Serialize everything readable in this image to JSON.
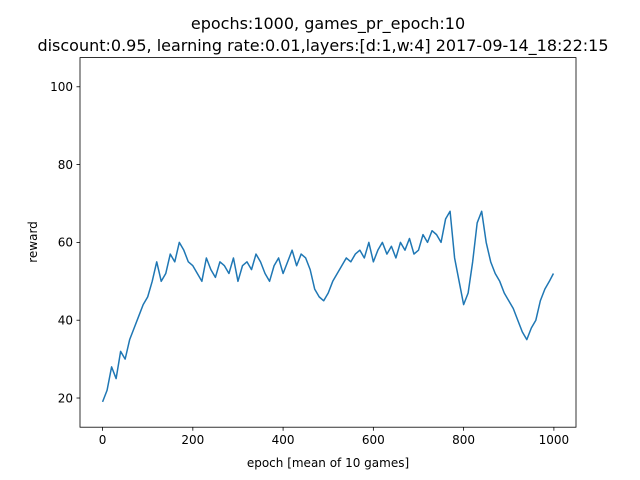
{
  "chart_data": {
    "type": "line",
    "title": "epochs:1000, games_pr_epoch:10",
    "subtitle": "discount:0.95, learning rate:0.01,layers:[d:1,w:4] 2017-09-14_18:22:15",
    "xlabel": "epoch [mean of 10 games]",
    "ylabel": "reward",
    "xlim": [
      -50,
      1049
    ],
    "ylim": [
      12.5,
      107.5
    ],
    "xticks": [
      0,
      200,
      400,
      600,
      800,
      1000
    ],
    "yticks": [
      20,
      40,
      60,
      80,
      100
    ],
    "grid": false,
    "line_color": "#1f77b4",
    "series": [
      {
        "x": [
          0,
          10,
          20,
          30,
          40,
          50,
          60,
          70,
          80,
          90,
          100,
          110,
          120,
          130,
          140,
          150,
          160,
          170,
          180,
          190,
          200,
          210,
          220,
          230,
          240,
          250,
          260,
          270,
          280,
          290,
          300,
          310,
          320,
          330,
          340,
          350,
          360,
          370,
          380,
          390,
          400,
          410,
          420,
          430,
          440,
          450,
          460,
          470,
          480,
          490,
          500,
          510,
          520,
          530,
          540,
          550,
          560,
          570,
          580,
          590,
          600,
          610,
          620,
          630,
          640,
          650,
          660,
          670,
          680,
          690,
          700,
          710,
          720,
          730,
          740,
          750,
          760,
          770,
          780,
          790,
          800,
          810,
          820,
          830,
          840,
          850,
          860,
          870,
          880,
          890,
          900,
          910,
          920,
          930,
          940,
          950,
          960,
          970,
          980,
          990,
          999
        ],
        "values": [
          19,
          22,
          28,
          25,
          32,
          30,
          35,
          38,
          41,
          44,
          46,
          50,
          55,
          50,
          52,
          57,
          55,
          60,
          58,
          55,
          54,
          52,
          50,
          56,
          53,
          51,
          55,
          54,
          52,
          56,
          50,
          54,
          55,
          53,
          57,
          55,
          52,
          50,
          54,
          56,
          52,
          55,
          58,
          54,
          57,
          56,
          53,
          48,
          46,
          45,
          47,
          50,
          52,
          54,
          56,
          55,
          57,
          58,
          56,
          60,
          55,
          58,
          60,
          57,
          59,
          56,
          60,
          58,
          61,
          57,
          58,
          62,
          60,
          63,
          62,
          60,
          66,
          68,
          56,
          50,
          44,
          47,
          55,
          65,
          68,
          60,
          55,
          52,
          50,
          47,
          45,
          43,
          40,
          37,
          35,
          38,
          40,
          45,
          48,
          50,
          52
        ]
      }
    ]
  }
}
